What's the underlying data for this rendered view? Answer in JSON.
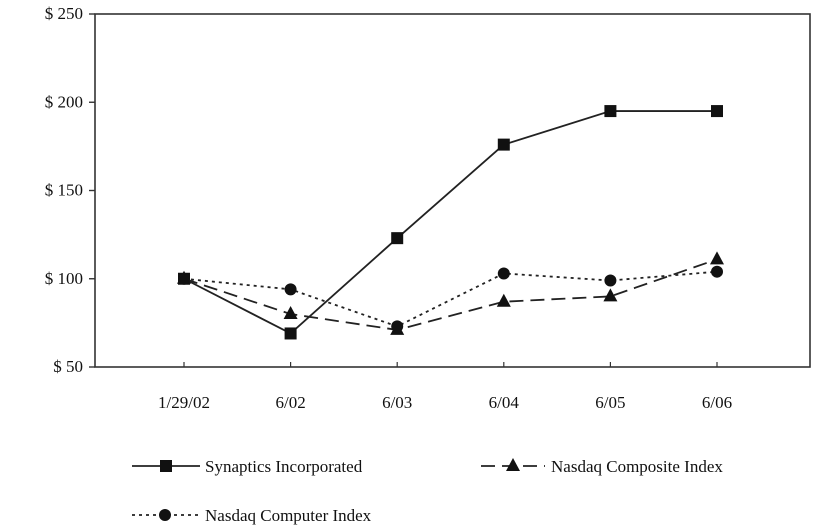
{
  "chart_data": {
    "type": "line",
    "title": "",
    "xlabel": "",
    "ylabel": "",
    "categories": [
      "1/29/02",
      "6/02",
      "6/03",
      "6/04",
      "6/05",
      "6/06"
    ],
    "y_ticks": [
      50,
      100,
      150,
      200,
      250
    ],
    "y_tick_labels": [
      "$ 50",
      "$ 100",
      "$ 150",
      "$ 200",
      "$ 250"
    ],
    "ylim": [
      50,
      250
    ],
    "grid": false,
    "legend_position": "bottom",
    "series": [
      {
        "name": "Synaptics Incorporated",
        "values": [
          100,
          69,
          123,
          176,
          195,
          195
        ],
        "line_style": "solid",
        "marker": "square",
        "color": "#222222"
      },
      {
        "name": "Nasdaq Composite Index",
        "values": [
          100,
          80,
          71,
          87,
          90,
          111
        ],
        "line_style": "dashed",
        "marker": "triangle",
        "color": "#222222"
      },
      {
        "name": "Nasdaq Computer Index",
        "values": [
          100,
          94,
          73,
          103,
          99,
          104
        ],
        "line_style": "dotted",
        "marker": "circle",
        "color": "#222222"
      }
    ]
  }
}
